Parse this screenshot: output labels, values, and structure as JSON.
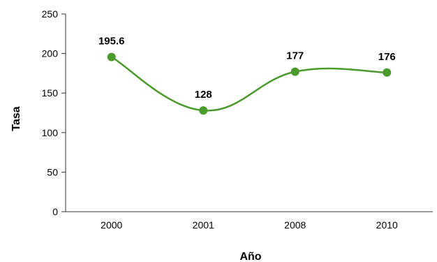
{
  "chart_data": {
    "type": "line",
    "categories": [
      "2000",
      "2001",
      "2008",
      "2010"
    ],
    "values": [
      195.6,
      128,
      177,
      176
    ],
    "data_labels": [
      "195.6",
      "128",
      "177",
      "176"
    ],
    "title": "",
    "xlabel": "Año",
    "ylabel": "Tasa",
    "ylim": [
      0,
      250
    ],
    "yticks": [
      "0",
      "50",
      "100",
      "150",
      "200",
      "250"
    ],
    "grid": false,
    "legend": "none",
    "colors": {
      "line": "#4a9a2c",
      "marker": "#4a9a2c",
      "axis": "#333333"
    }
  }
}
